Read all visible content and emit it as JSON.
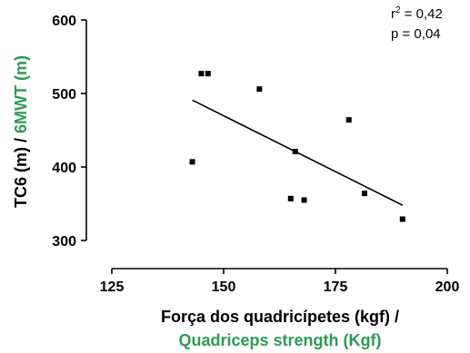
{
  "chart_data": {
    "type": "scatter",
    "x_ticks": [
      "125",
      "150",
      "175",
      "200"
    ],
    "y_ticks": [
      "300",
      "400",
      "500",
      "600"
    ],
    "xlim": [
      125,
      200
    ],
    "ylim": [
      300,
      600
    ],
    "points": [
      {
        "x": 143,
        "y": 407
      },
      {
        "x": 145,
        "y": 527
      },
      {
        "x": 146.5,
        "y": 527
      },
      {
        "x": 158,
        "y": 506
      },
      {
        "x": 165,
        "y": 357
      },
      {
        "x": 166,
        "y": 421
      },
      {
        "x": 168,
        "y": 355
      },
      {
        "x": 178,
        "y": 464
      },
      {
        "x": 181.5,
        "y": 364
      },
      {
        "x": 190,
        "y": 329
      }
    ],
    "trendline": {
      "x": [
        143,
        190
      ],
      "y": [
        491,
        348
      ]
    },
    "annotation": {
      "r2_base": "r",
      "r2_exp": "2",
      "r2_value": " = 0,42",
      "p_text": "p = 0,04"
    },
    "xlabel": {
      "line1": "Força dos quadricípetes (kgf) /",
      "line2": "Quadriceps strength (Kgf)"
    },
    "ylabel": {
      "part1": "TC6 (m) / ",
      "part2": "6MWT (m)"
    },
    "colors": {
      "marks": "#000000",
      "english": "#2e9a53"
    }
  }
}
